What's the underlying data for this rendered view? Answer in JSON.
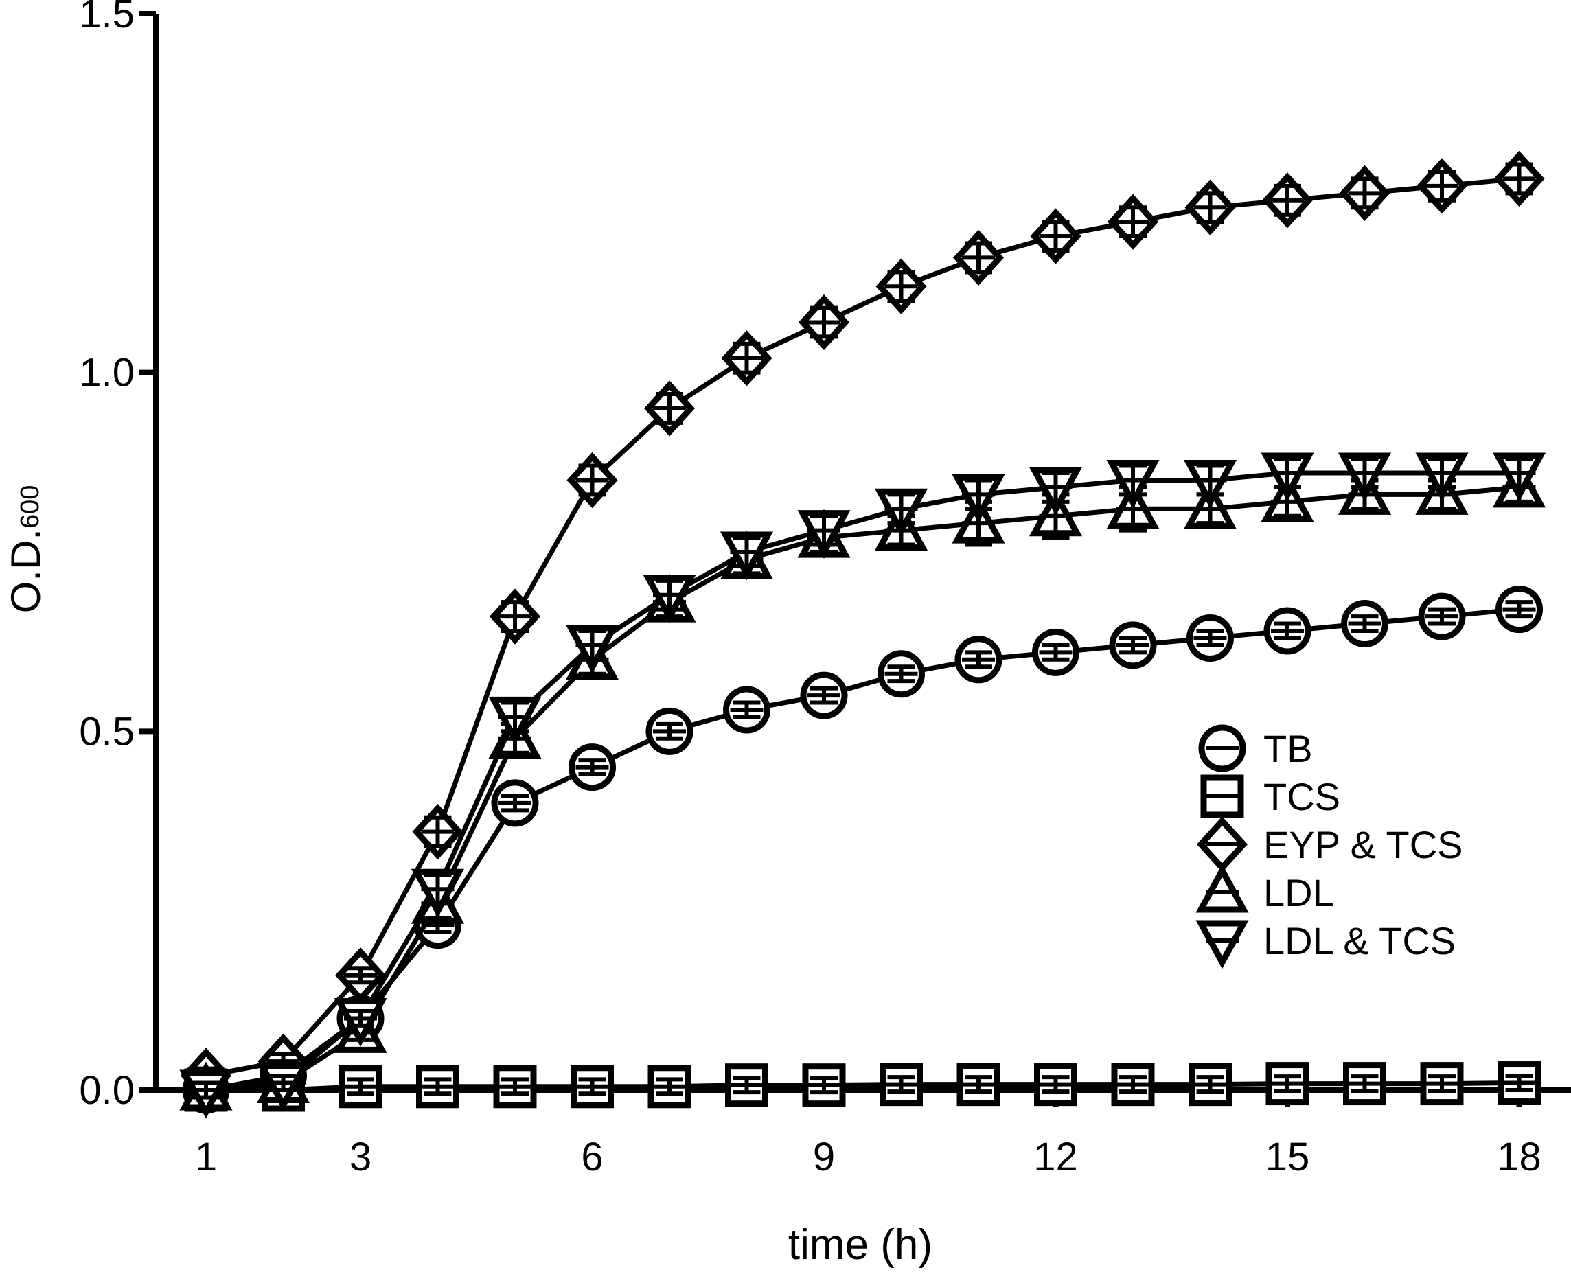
{
  "chart_data": {
    "type": "line",
    "title": "",
    "xlabel": "time (h)",
    "ylabel": "O.D.",
    "ylabel_subscript": "600",
    "xlim": [
      0.5,
      18.5
    ],
    "ylim": [
      0,
      1.5
    ],
    "xticks": [
      1,
      3,
      6,
      9,
      12,
      15,
      18
    ],
    "xtick_labels": [
      "1",
      "3",
      "6",
      "9",
      "12",
      "15",
      "18"
    ],
    "yticks": [
      0,
      0.5,
      1,
      1.5
    ],
    "ytick_labels": [
      "0.0",
      "0.5",
      "1.0",
      "1.5"
    ],
    "grid": false,
    "legend_position": "right, lower-middle",
    "x": [
      1,
      2,
      3,
      4,
      5,
      6,
      7,
      8,
      9,
      10,
      11,
      12,
      13,
      14,
      15,
      16,
      17,
      18
    ],
    "series": [
      {
        "name": "TB",
        "marker": "circle",
        "values": [
          0.0,
          0.02,
          0.1,
          0.23,
          0.4,
          0.45,
          0.5,
          0.53,
          0.55,
          0.58,
          0.6,
          0.61,
          0.62,
          0.63,
          0.64,
          0.65,
          0.66,
          0.67
        ],
        "errors": [
          0.01,
          0.01,
          0.01,
          0.01,
          0.01,
          0.01,
          0.01,
          0.01,
          0.01,
          0.01,
          0.01,
          0.01,
          0.01,
          0.01,
          0.01,
          0.01,
          0.01,
          0.01
        ]
      },
      {
        "name": "TCS",
        "marker": "square",
        "values": [
          0.0,
          0.0,
          0.005,
          0.005,
          0.005,
          0.005,
          0.005,
          0.007,
          0.007,
          0.008,
          0.008,
          0.008,
          0.008,
          0.008,
          0.009,
          0.009,
          0.009,
          0.01
        ],
        "errors": [
          0.01,
          0.01,
          0.01,
          0.01,
          0.01,
          0.01,
          0.01,
          0.01,
          0.01,
          0.01,
          0.01,
          0.01,
          0.01,
          0.01,
          0.01,
          0.01,
          0.01,
          0.01
        ]
      },
      {
        "name": "EYP & TCS",
        "marker": "diamond",
        "values": [
          0.02,
          0.04,
          0.16,
          0.36,
          0.66,
          0.85,
          0.95,
          1.02,
          1.07,
          1.12,
          1.16,
          1.19,
          1.21,
          1.23,
          1.24,
          1.25,
          1.26,
          1.27
        ],
        "errors": [
          0.01,
          0.01,
          0.01,
          0.02,
          0.02,
          0.02,
          0.02,
          0.02,
          0.02,
          0.02,
          0.02,
          0.02,
          0.02,
          0.02,
          0.02,
          0.02,
          0.02,
          0.02
        ]
      },
      {
        "name": "LDL",
        "marker": "triangle-up",
        "values": [
          0.0,
          0.01,
          0.08,
          0.26,
          0.49,
          0.6,
          0.68,
          0.74,
          0.77,
          0.78,
          0.79,
          0.8,
          0.81,
          0.81,
          0.82,
          0.83,
          0.83,
          0.84
        ],
        "errors": [
          0.01,
          0.01,
          0.01,
          0.02,
          0.02,
          0.02,
          0.02,
          0.02,
          0.02,
          0.02,
          0.03,
          0.03,
          0.03,
          0.02,
          0.02,
          0.02,
          0.02,
          0.02
        ]
      },
      {
        "name": "LDL & TCS",
        "marker": "triangle-down",
        "values": [
          0.0,
          0.01,
          0.1,
          0.28,
          0.52,
          0.62,
          0.69,
          0.75,
          0.78,
          0.81,
          0.83,
          0.84,
          0.85,
          0.85,
          0.86,
          0.86,
          0.86,
          0.86
        ],
        "errors": [
          0.01,
          0.01,
          0.01,
          0.02,
          0.02,
          0.02,
          0.02,
          0.02,
          0.02,
          0.02,
          0.02,
          0.02,
          0.02,
          0.02,
          0.02,
          0.02,
          0.02,
          0.02
        ]
      }
    ]
  }
}
